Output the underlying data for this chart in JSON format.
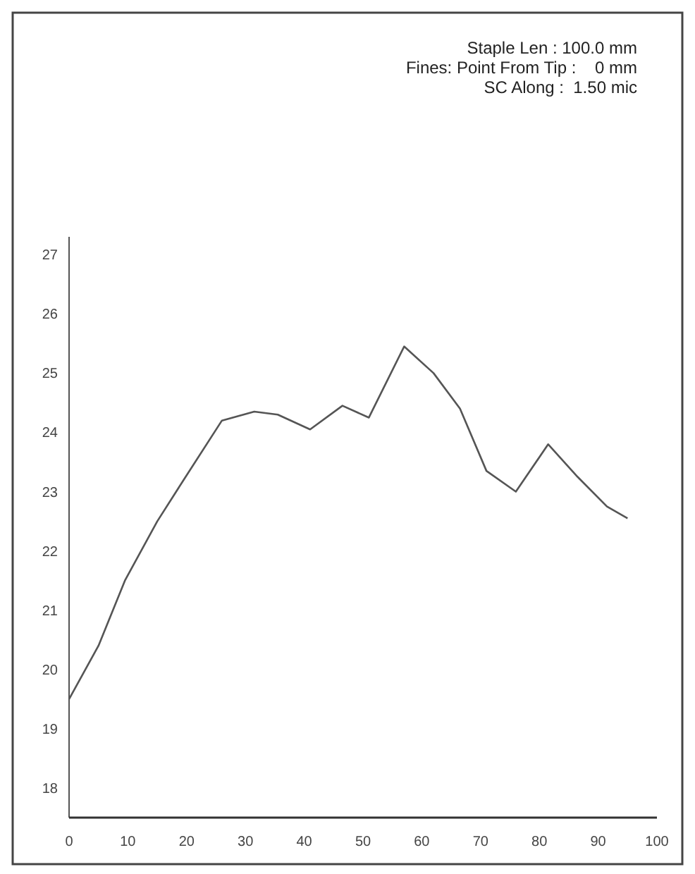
{
  "chart_data": {
    "type": "line",
    "annotations": [
      "Staple Len : 100.0 mm",
      "Fines: Point From Tip :    0 mm",
      "SC Along :  1.50 mic"
    ],
    "x": [
      0,
      5,
      9.5,
      15,
      19.5,
      26,
      31.5,
      35.5,
      41,
      46.5,
      51,
      57,
      62,
      66.5,
      71,
      76,
      81.5,
      86.5,
      91.5,
      95
    ],
    "series": [
      {
        "color": "#555555",
        "values": [
          19.5,
          20.4,
          21.5,
          22.5,
          23.2,
          24.2,
          24.35,
          24.3,
          24.05,
          24.45,
          24.25,
          25.45,
          25.0,
          24.4,
          23.35,
          23.0,
          23.8,
          23.25,
          22.75,
          22.55
        ]
      }
    ],
    "xlim": [
      0,
      100
    ],
    "xticks": [
      0,
      10,
      20,
      30,
      40,
      50,
      60,
      70,
      80,
      90,
      100
    ],
    "ylim": [
      17.5,
      27.3
    ],
    "yticks": [
      18,
      19,
      20,
      21,
      22,
      23,
      24,
      25,
      26,
      27
    ],
    "grid": false,
    "marker": "none",
    "line_style": "solid"
  }
}
